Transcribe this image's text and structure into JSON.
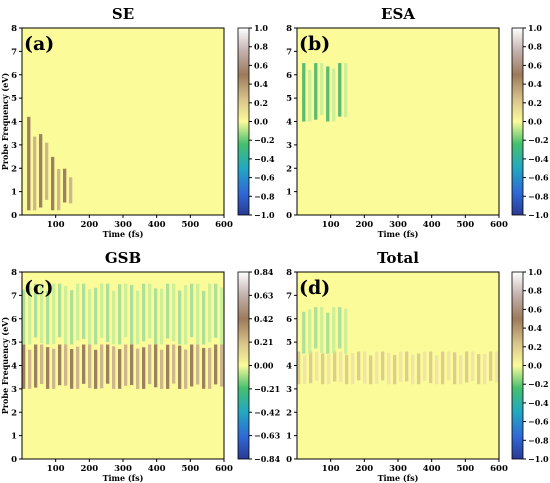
{
  "chart_data": [
    {
      "type": "heatmap",
      "title": "SE",
      "panel_label": "(a)",
      "xlabel": "Time (fs)",
      "ylabel": "Probe Frequency (eV)",
      "xlim": [
        0,
        600
      ],
      "ylim": [
        0,
        8
      ],
      "x_ticks": [
        "100",
        "200",
        "300",
        "400",
        "500",
        "600"
      ],
      "y_ticks": [
        "0",
        "1",
        "2",
        "3",
        "4",
        "5",
        "6",
        "7",
        "8"
      ],
      "colorbar_range": [
        -1.0,
        1.0
      ],
      "colorbar_ticks": [
        "1.0",
        "0.8",
        "0.6",
        "0.4",
        "0.2",
        "0.0",
        "−0.2",
        "−0.4",
        "−0.6",
        "−0.8",
        "−1.0"
      ],
      "features": [
        {
          "t_start": 15,
          "t_end": 150,
          "e_low": 0.2,
          "e_high": 4.2,
          "value": 0.4,
          "note": "positive lobes decaying with time"
        }
      ]
    },
    {
      "type": "heatmap",
      "title": "ESA",
      "panel_label": "(b)",
      "xlabel": "Time (fs)",
      "ylabel": "",
      "xlim": [
        0,
        600
      ],
      "ylim": [
        0,
        8
      ],
      "x_ticks": [
        "100",
        "200",
        "300",
        "400",
        "500",
        "600"
      ],
      "y_ticks": [
        "0",
        "1",
        "2",
        "3",
        "4",
        "5",
        "6",
        "7",
        "8"
      ],
      "colorbar_range": [
        -1.0,
        1.0
      ],
      "colorbar_ticks": [
        "1.0",
        "0.8",
        "0.6",
        "0.4",
        "0.2",
        "0.0",
        "−0.2",
        "−0.4",
        "−0.6",
        "−0.8",
        "−1.0"
      ],
      "features": [
        {
          "t_start": 15,
          "t_end": 155,
          "e_low": 4.0,
          "e_high": 6.5,
          "value": -0.3,
          "note": "negative green bands"
        }
      ]
    },
    {
      "type": "heatmap",
      "title": "GSB",
      "panel_label": "(c)",
      "xlabel": "Time (fs)",
      "ylabel": "Probe Frequency (eV)",
      "xlim": [
        0,
        600
      ],
      "ylim": [
        0,
        8
      ],
      "x_ticks": [
        "100",
        "200",
        "300",
        "400",
        "500",
        "600"
      ],
      "y_ticks": [
        "0",
        "1",
        "2",
        "3",
        "4",
        "5",
        "6",
        "7",
        "8"
      ],
      "colorbar_range": [
        -0.84,
        0.84
      ],
      "colorbar_ticks": [
        "0.84",
        "0.63",
        "0.42",
        "0.21",
        "0.00",
        "−0.21",
        "−0.42",
        "−0.63",
        "−0.84"
      ],
      "features": [
        {
          "t_start": 0,
          "t_end": 600,
          "e_low": 3.0,
          "e_high": 4.9,
          "value": 0.5,
          "note": "persistent positive band near 4 eV"
        },
        {
          "t_start": 0,
          "t_end": 600,
          "e_low": 4.9,
          "e_high": 7.5,
          "value": -0.2,
          "note": "negative side lobes"
        }
      ]
    },
    {
      "type": "heatmap",
      "title": "Total",
      "panel_label": "(d)",
      "xlabel": "Time (fs)",
      "ylabel": "",
      "xlim": [
        0,
        600
      ],
      "ylim": [
        0,
        8
      ],
      "x_ticks": [
        "100",
        "200",
        "300",
        "400",
        "500",
        "600"
      ],
      "y_ticks": [
        "0",
        "1",
        "2",
        "3",
        "4",
        "5",
        "6",
        "7",
        "8"
      ],
      "colorbar_range": [
        -1.0,
        1.0
      ],
      "colorbar_ticks": [
        "1.0",
        "0.8",
        "0.6",
        "0.4",
        "0.2",
        "0.0",
        "−0.2",
        "−0.4",
        "−0.6",
        "−0.8",
        "−1.0"
      ],
      "features": [
        {
          "t_start": 0,
          "t_end": 600,
          "e_low": 3.2,
          "e_high": 4.6,
          "value": 0.15,
          "note": "weak positive band"
        },
        {
          "t_start": 15,
          "t_end": 155,
          "e_low": 4.5,
          "e_high": 6.5,
          "value": -0.15,
          "note": "weak negative bands"
        }
      ]
    }
  ]
}
